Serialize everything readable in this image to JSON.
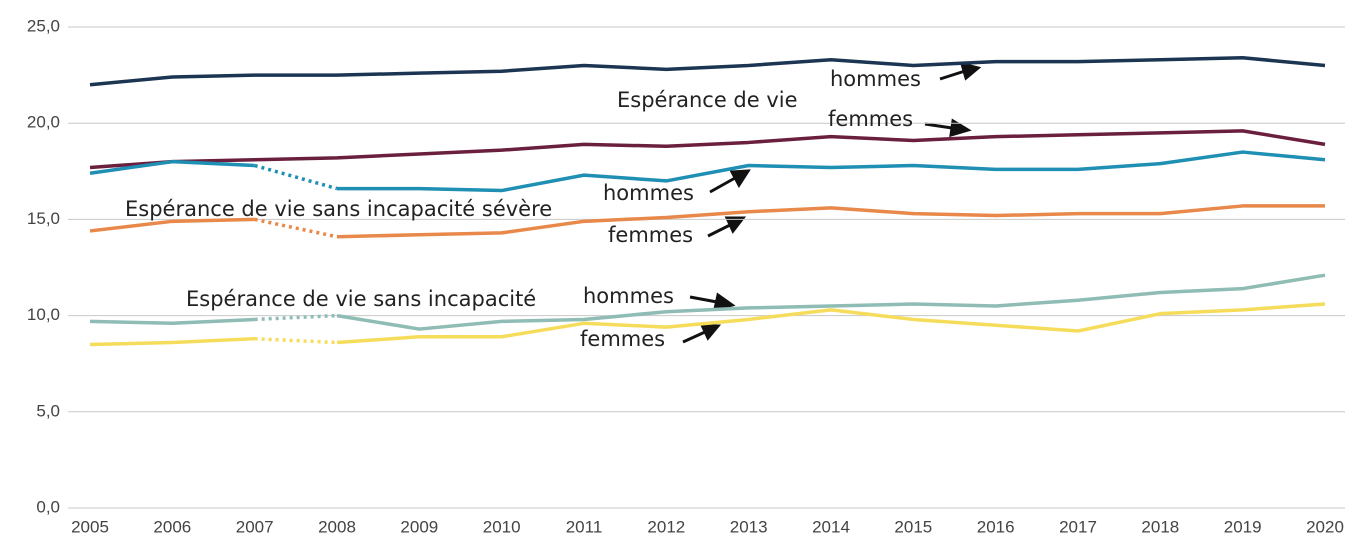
{
  "chart_data": {
    "type": "line",
    "x": [
      2005,
      2006,
      2007,
      2008,
      2009,
      2010,
      2011,
      2012,
      2013,
      2014,
      2015,
      2016,
      2017,
      2018,
      2019,
      2020
    ],
    "xlim": [
      2005,
      2020
    ],
    "xticks": [
      2005,
      2006,
      2007,
      2008,
      2009,
      2010,
      2011,
      2012,
      2013,
      2014,
      2015,
      2016,
      2017,
      2018,
      2019,
      2020
    ],
    "ylim": [
      0,
      25
    ],
    "yticks": [
      {
        "value": 0,
        "label": "0,0"
      },
      {
        "value": 5,
        "label": "5,0"
      },
      {
        "value": 10,
        "label": "10,0"
      },
      {
        "value": 15,
        "label": "15,0"
      },
      {
        "value": 20,
        "label": "20,0"
      },
      {
        "value": 25,
        "label": "25,0"
      }
    ],
    "grid": true,
    "series": [
      {
        "color": "#1c3553",
        "values": [
          22.0,
          22.4,
          22.5,
          22.5,
          22.6,
          22.7,
          23.0,
          22.8,
          23.0,
          23.3,
          23.0,
          23.2,
          23.2,
          23.3,
          23.4,
          23.0
        ]
      },
      {
        "color": "#6b1f3f",
        "values": [
          17.7,
          18.0,
          18.1,
          18.2,
          18.4,
          18.6,
          18.9,
          18.8,
          19.0,
          19.3,
          19.1,
          19.3,
          19.4,
          19.5,
          19.6,
          18.9
        ]
      },
      {
        "color": "#1f8fb4",
        "values": [
          17.4,
          18.0,
          17.8,
          16.6,
          16.6,
          16.5,
          17.3,
          17.0,
          17.8,
          17.7,
          17.8,
          17.6,
          17.6,
          17.9,
          18.5,
          18.1
        ]
      },
      {
        "color": "#e8884a",
        "values": [
          14.4,
          14.9,
          15.0,
          14.1,
          14.2,
          14.3,
          14.9,
          15.1,
          15.4,
          15.6,
          15.3,
          15.2,
          15.3,
          15.3,
          15.7,
          15.7
        ]
      },
      {
        "color": "#8fbcb4",
        "values": [
          9.7,
          9.6,
          9.8,
          10.0,
          9.3,
          9.7,
          9.8,
          10.2,
          10.4,
          10.5,
          10.6,
          10.5,
          10.8,
          11.2,
          11.4,
          12.1
        ]
      },
      {
        "color": "#f5dc5a",
        "values": [
          8.5,
          8.6,
          8.8,
          8.6,
          8.9,
          8.9,
          9.6,
          9.4,
          9.8,
          10.3,
          9.8,
          9.5,
          9.2,
          10.1,
          10.3,
          10.6
        ]
      }
    ],
    "dotted_between": [
      2007,
      2008
    ],
    "dotted_series": [
      2,
      3,
      4,
      5
    ],
    "annotations": [
      "hommes",
      "Espérance de vie",
      "femmes",
      "hommes",
      "Espérance de vie sans incapacité sévère",
      "femmes",
      "Espérance de vie sans incapacité",
      "hommes",
      "femmes"
    ]
  }
}
